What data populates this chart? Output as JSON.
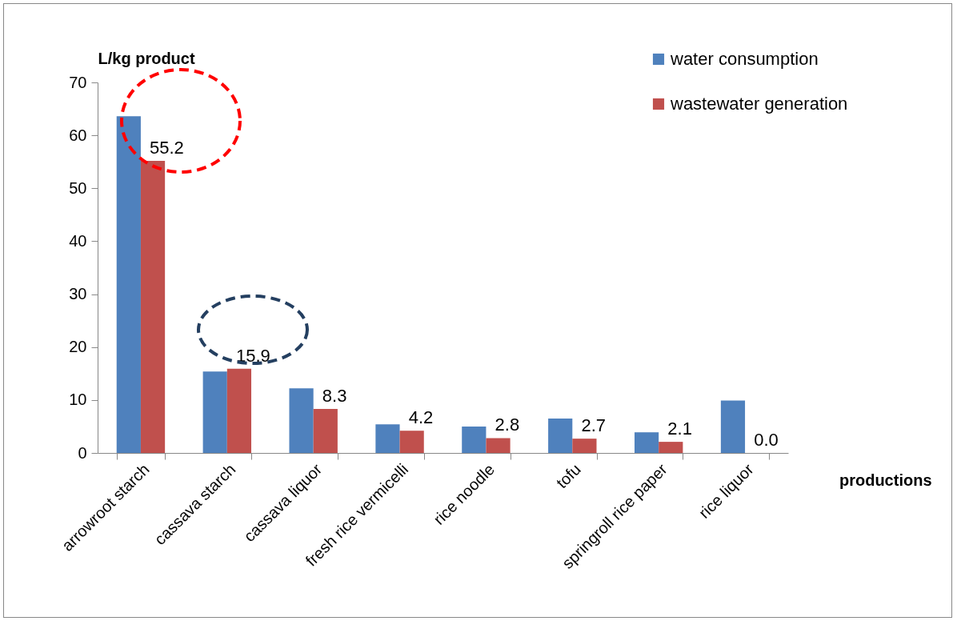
{
  "chart_data": {
    "type": "bar",
    "categories": [
      "arrowroot starch",
      "cassava starch",
      "cassava liquor",
      "fresh rice vermicelli",
      "rice noodle",
      "tofu",
      "springroll rice paper",
      "rice liquor"
    ],
    "series": [
      {
        "name": "water consumption",
        "color": "#4f81bd",
        "values": [
          63.6,
          15.4,
          12.2,
          5.4,
          5.0,
          6.5,
          3.9,
          9.9
        ]
      },
      {
        "name": "wastewater generation",
        "color": "#c0504d",
        "values": [
          55.2,
          15.9,
          8.3,
          4.2,
          2.8,
          2.7,
          2.1,
          0.0
        ],
        "value_labels": [
          "55.2",
          "15.9",
          "8.3",
          "4.2",
          "2.8",
          "2.7",
          "2.1",
          "0.0"
        ]
      }
    ],
    "ylabel": "L/kg product",
    "xlabel": "productions",
    "ylim": [
      0,
      70
    ],
    "yticks": [
      0,
      10,
      20,
      30,
      40,
      50,
      60,
      70
    ],
    "grid": false,
    "legend": "top right"
  }
}
